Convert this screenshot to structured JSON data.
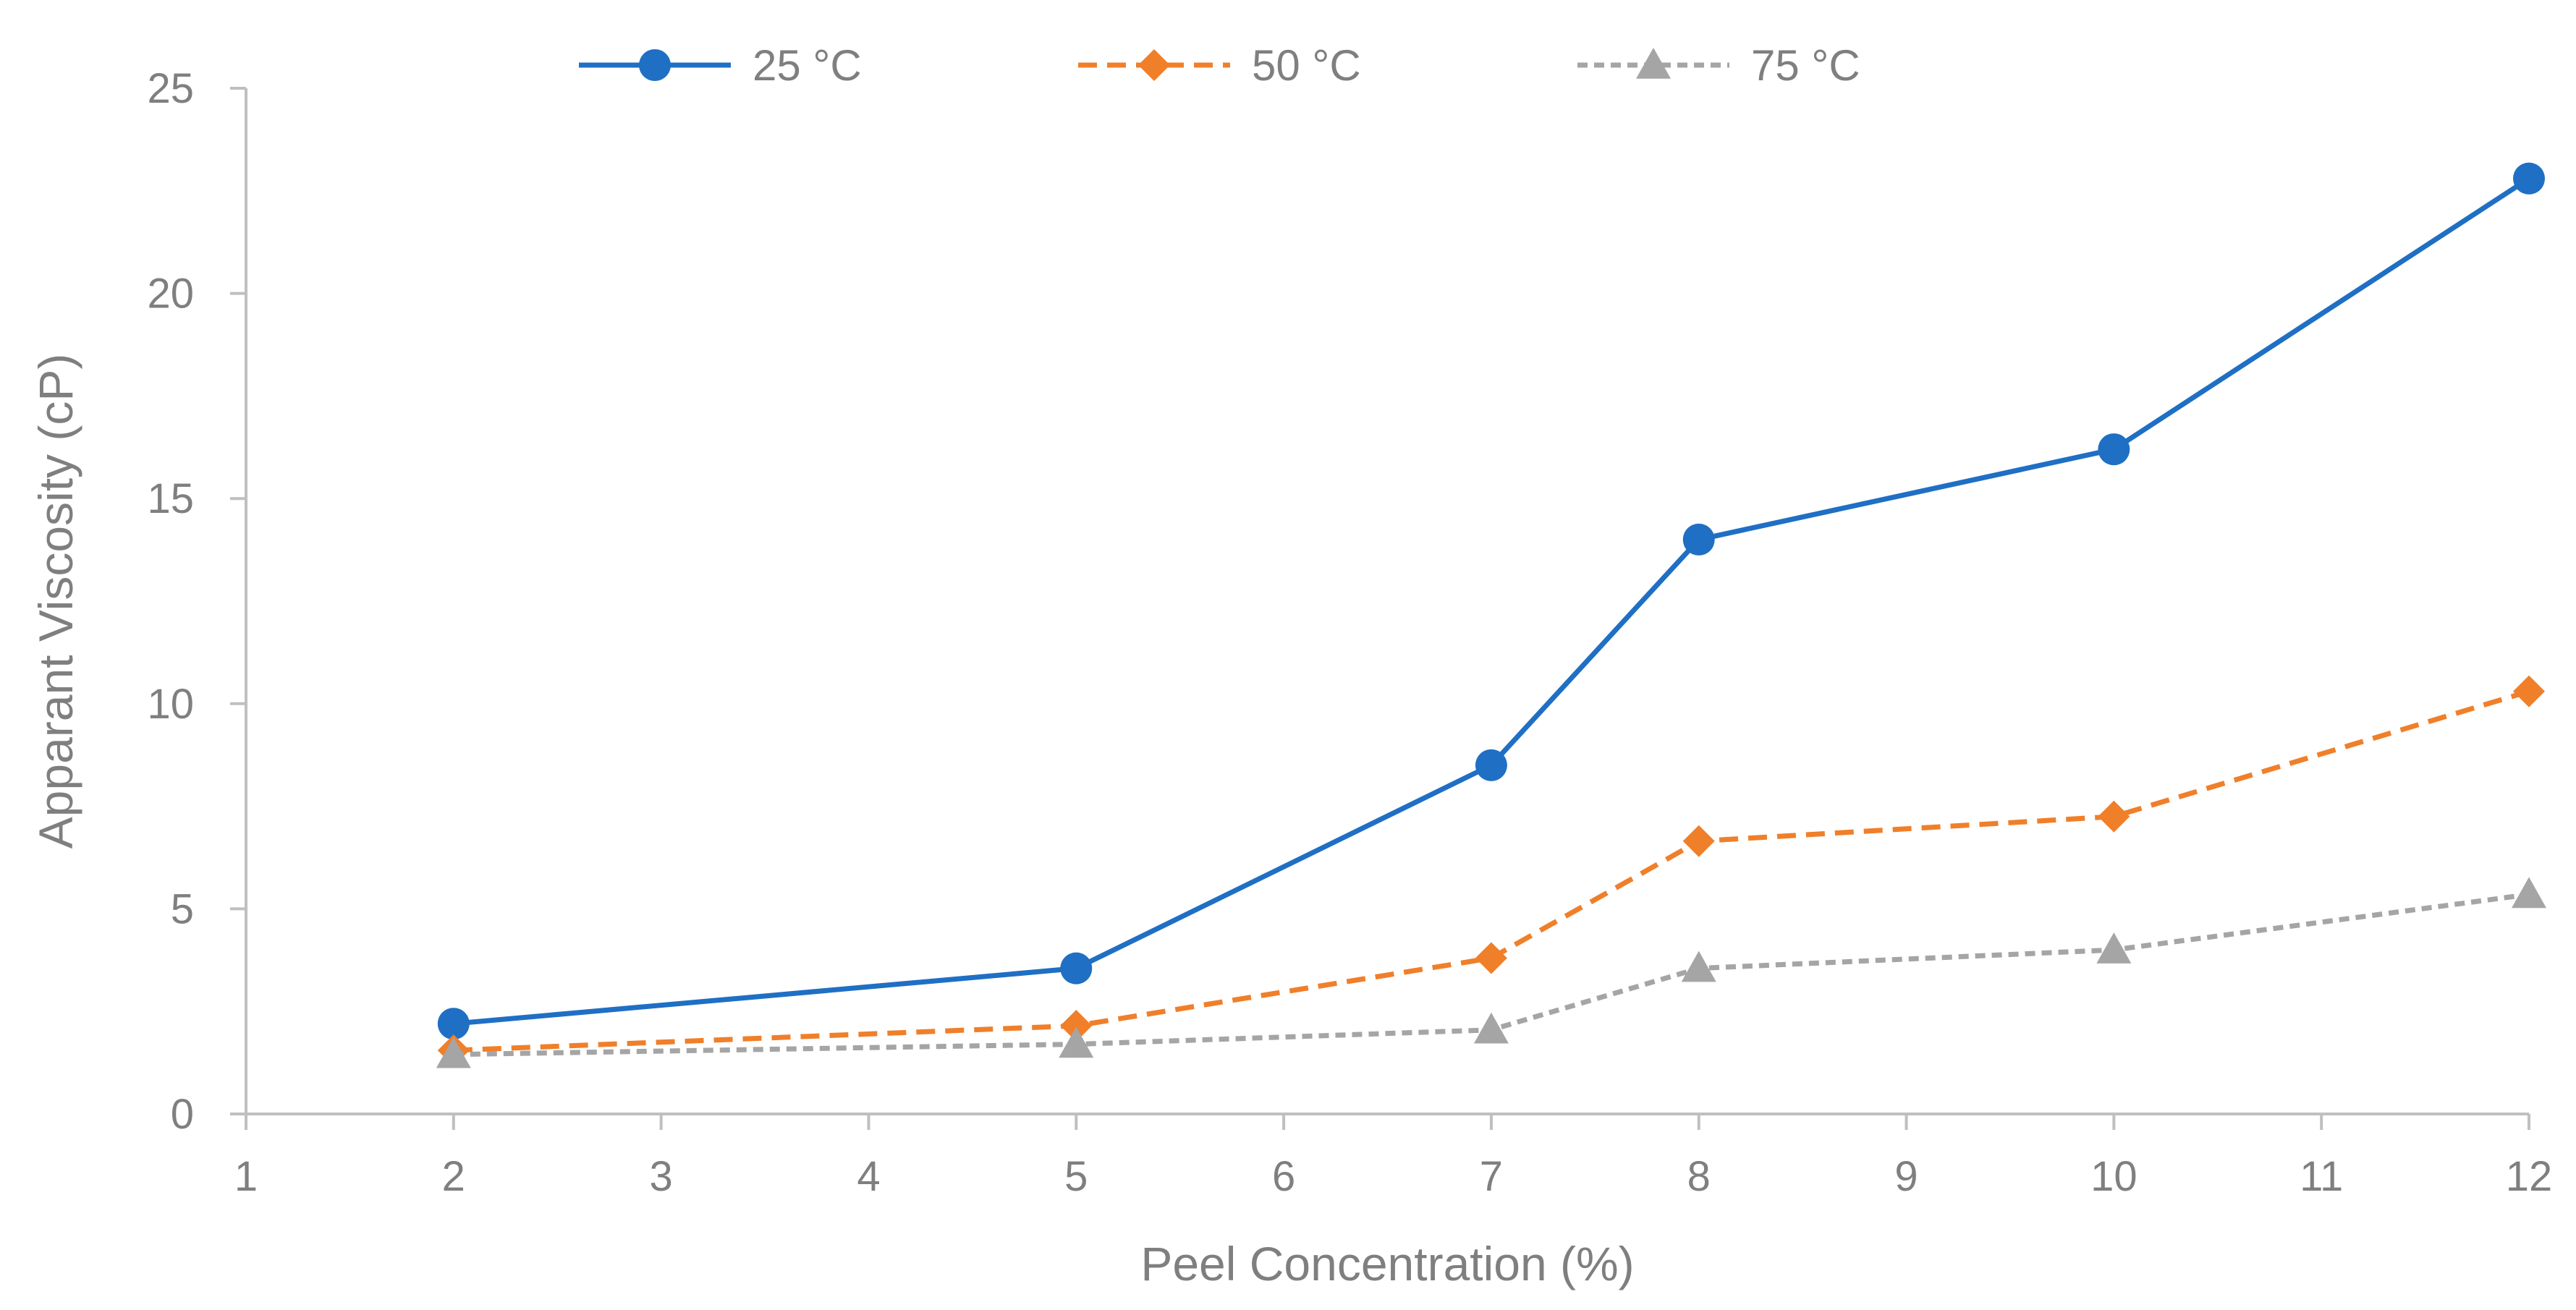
{
  "chart_data": {
    "type": "line",
    "title": "",
    "xlabel": "Peel Concentration (%)",
    "ylabel": "Apparant Viscosity (cP)",
    "xlim": [
      1,
      12
    ],
    "ylim": [
      0,
      25
    ],
    "xticks": [
      1,
      2,
      3,
      4,
      5,
      6,
      7,
      8,
      9,
      10,
      11,
      12
    ],
    "yticks": [
      0,
      5,
      10,
      15,
      20,
      25
    ],
    "grid": false,
    "legend_position": "top",
    "series": [
      {
        "name": "25 °C",
        "color": "#1f6fc4",
        "dash": "solid",
        "marker": "circle",
        "x": [
          2,
          5,
          7,
          8,
          10,
          12
        ],
        "values": [
          2.2,
          3.55,
          8.5,
          14.0,
          16.2,
          22.8
        ]
      },
      {
        "name": "50 °C",
        "color": "#f07f2a",
        "dash": "dashed",
        "marker": "diamond",
        "x": [
          2,
          5,
          7,
          8,
          10,
          12
        ],
        "values": [
          1.55,
          2.15,
          3.8,
          6.65,
          7.25,
          10.3
        ]
      },
      {
        "name": "75 °C",
        "color": "#a5a5a5",
        "dash": "dotted",
        "marker": "triangle",
        "x": [
          2,
          5,
          7,
          8,
          10,
          12
        ],
        "values": [
          1.45,
          1.7,
          2.05,
          3.55,
          4.0,
          5.35
        ]
      }
    ]
  }
}
